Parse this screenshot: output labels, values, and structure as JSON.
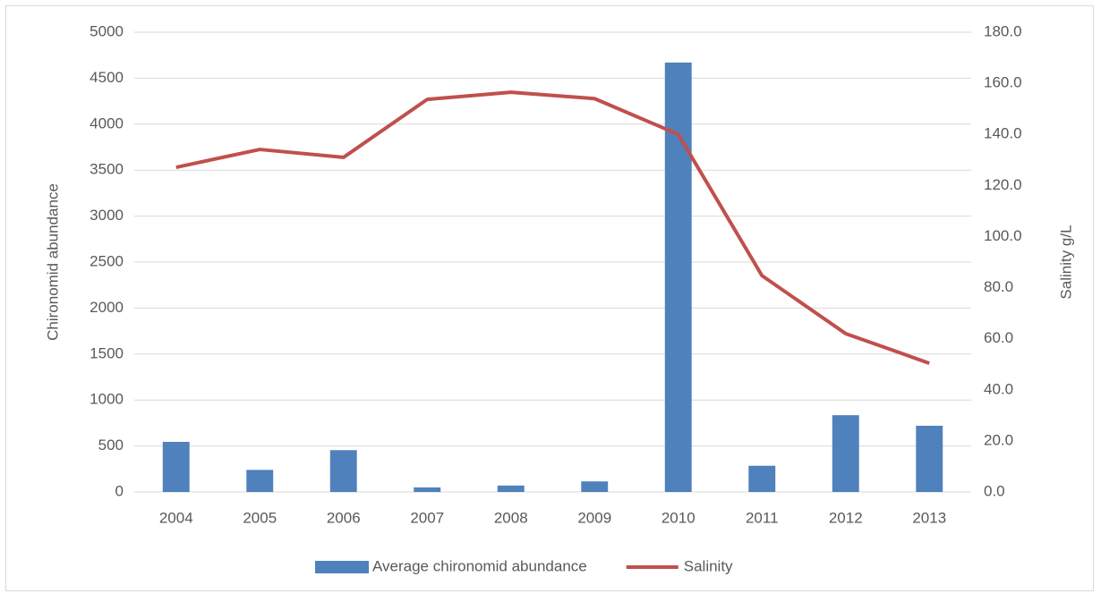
{
  "chart_data": {
    "type": "bar_line",
    "categories": [
      "2004",
      "2005",
      "2006",
      "2007",
      "2008",
      "2009",
      "2010",
      "2011",
      "2012",
      "2013"
    ],
    "y_label": "Chironomid abundance",
    "y2_label": "Salinity g/L",
    "series": [
      {
        "name": "Average chironomid abundance",
        "type": "bar",
        "color": "#4f81bd",
        "values": [
          545,
          240,
          455,
          50,
          70,
          115,
          4670,
          285,
          835,
          720
        ]
      },
      {
        "name": "Salinity",
        "type": "line",
        "axis": "y2",
        "color": "#c0504d",
        "values": [
          127.1,
          134.1,
          131.0,
          153.7,
          156.5,
          154.0,
          140.0,
          84.7,
          62.0,
          50.4
        ]
      }
    ],
    "ylim": [
      0,
      5000
    ],
    "yticks": [
      0,
      500,
      1000,
      1500,
      2000,
      2500,
      3000,
      3500,
      4000,
      4500,
      5000
    ],
    "y2lim": [
      0,
      180
    ],
    "y2ticks": [
      {
        "value": 0,
        "label": "0.0"
      },
      {
        "value": 20,
        "label": "20.0"
      },
      {
        "value": 40,
        "label": "40.0"
      },
      {
        "value": 60,
        "label": "60.0"
      },
      {
        "value": 80,
        "label": "80.0"
      },
      {
        "value": 100,
        "label": "100.0"
      },
      {
        "value": 120,
        "label": "120.0"
      },
      {
        "value": 140,
        "label": "140.0"
      },
      {
        "value": 160,
        "label": "160.0"
      },
      {
        "value": 180,
        "label": "180.0"
      }
    ],
    "grid": true,
    "legend": "bottom"
  }
}
